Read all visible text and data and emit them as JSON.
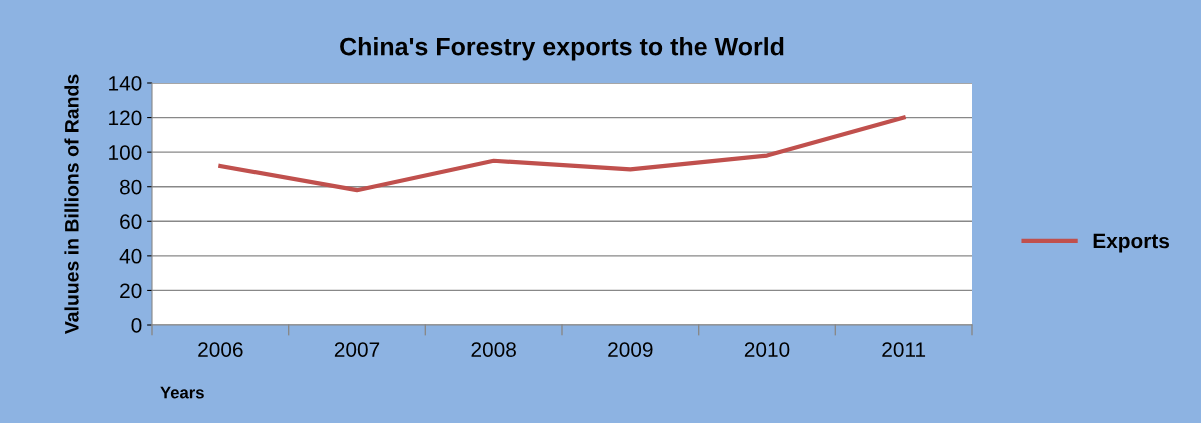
{
  "chart_data": {
    "type": "line",
    "title": "China's Forestry exports to the World",
    "xlabel": "Years",
    "ylabel": "Valuues in Billions of Rands",
    "categories": [
      "2006",
      "2007",
      "2008",
      "2009",
      "2010",
      "2011"
    ],
    "series": [
      {
        "name": "Exports",
        "color": "#c0504d",
        "values": [
          92,
          78,
          95,
          90,
          98,
          120
        ]
      }
    ],
    "ylim": [
      0,
      140
    ],
    "yticks": [
      0,
      20,
      40,
      60,
      80,
      100,
      120,
      140
    ],
    "grid": "y",
    "legend": "right",
    "marker": "none",
    "line_style": "solid"
  }
}
